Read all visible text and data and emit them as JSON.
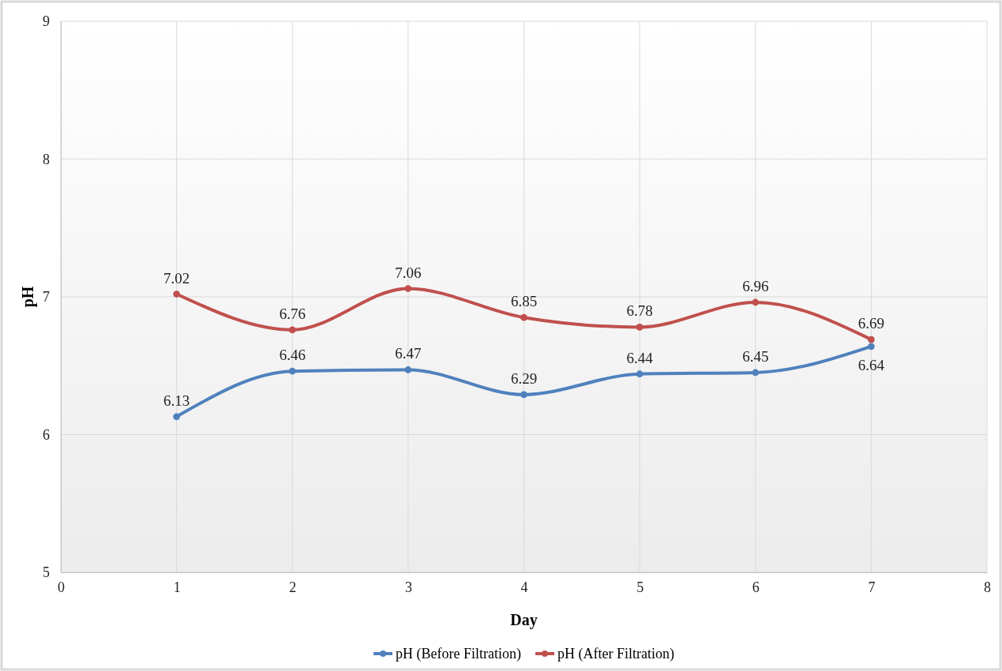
{
  "chart_data": {
    "type": "line",
    "xlabel": "Day",
    "ylabel": "pH",
    "x": [
      1,
      2,
      3,
      4,
      5,
      6,
      7
    ],
    "series": [
      {
        "name": "pH (Before Filtration)",
        "color": "#4f81bd",
        "values": [
          6.13,
          6.46,
          6.47,
          6.29,
          6.44,
          6.45,
          6.64
        ]
      },
      {
        "name": "pH (After Filtration)",
        "color": "#c0504d",
        "values": [
          7.02,
          6.76,
          7.06,
          6.85,
          6.78,
          6.96,
          6.69
        ]
      }
    ],
    "xlim": [
      0,
      8
    ],
    "xticks": [
      0,
      1,
      2,
      3,
      4,
      5,
      6,
      7,
      8
    ],
    "ylim": [
      5,
      9
    ],
    "yticks": [
      5,
      6,
      7,
      8,
      9
    ],
    "grid": true,
    "legend": "bottom",
    "marker": "circle",
    "line_style": "solid",
    "data_labels": true
  }
}
